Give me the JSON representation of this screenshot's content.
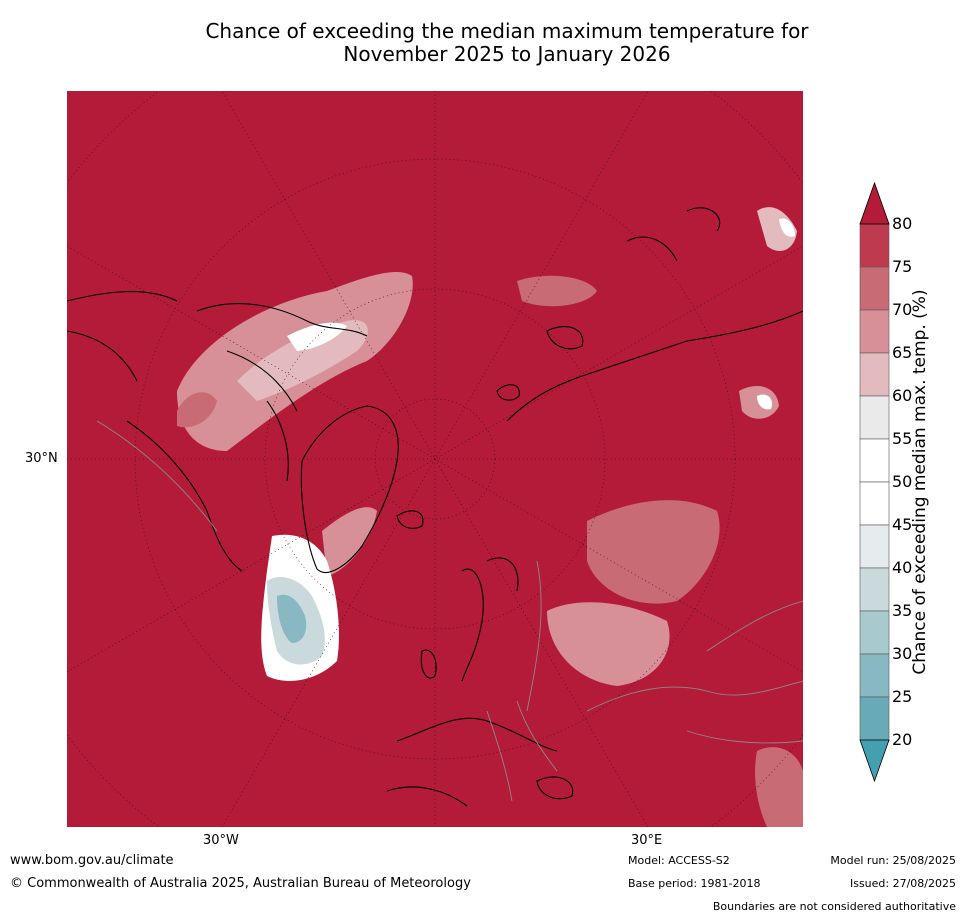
{
  "title_line1": "Chance of exceeding the median maximum temperature for",
  "title_line2": "November 2025 to January 2026",
  "map": {
    "projection": "north-polar-stereographic",
    "background_color": "#b31b38",
    "lat_label": "30°N",
    "lon_labels": [
      "30°W",
      "30°E"
    ]
  },
  "colorbar": {
    "label": "Chance of exceeding median max. temp. (%)",
    "ticks": [
      "80",
      "75",
      "70",
      "65",
      "60",
      "55",
      "50",
      "45",
      "40",
      "35",
      "30",
      "25",
      "20"
    ],
    "colors": [
      "#b31b38",
      "#be3b4f",
      "#c86b74",
      "#d79097",
      "#e3bbbf",
      "#eaeaea",
      "#ffffff",
      "#ffffff",
      "#e6ecee",
      "#cad9dc",
      "#a8c9ce",
      "#88b8c2",
      "#68aab8",
      "#44a0b1"
    ],
    "over_color": "#b31b38",
    "under_color": "#44a0b1"
  },
  "footer": {
    "url": "www.bom.gov.au/climate",
    "copyright": "© Commonwealth of Australia 2025, Australian Bureau of Meteorology",
    "model": "Model: ACCESS-S2",
    "base_period": "Base period: 1981-2018",
    "model_run": "Model run: 25/08/2025",
    "issued": "Issued: 27/08/2025",
    "disclaimer": "Boundaries are not considered authoritative"
  }
}
